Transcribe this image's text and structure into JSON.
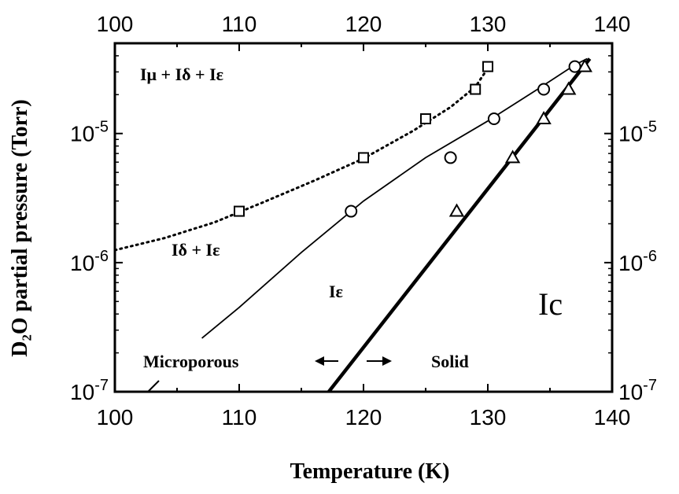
{
  "chart_data": {
    "type": "line",
    "xlabel": "Temperature (K)",
    "ylabel": "D₂O partial pressure (Torr)",
    "xlim": [
      100,
      140
    ],
    "ylim": [
      1e-07,
      5e-05
    ],
    "y_scale": "log",
    "x_ticks": [
      "100",
      "110",
      "120",
      "130",
      "140"
    ],
    "top_x_ticks": [
      "100",
      "110",
      "120",
      "130",
      "140"
    ],
    "y_tick_mantissa": "10",
    "y_tick_exponents": [
      "-7",
      "-6",
      "-5"
    ],
    "series": [
      {
        "marker": "square",
        "line": "dotted",
        "points": [
          [
            110,
            2.5e-06
          ],
          [
            120,
            6.5e-06
          ],
          [
            125,
            1.3e-05
          ],
          [
            129,
            2.2e-05
          ],
          [
            130,
            3.3e-05
          ]
        ]
      },
      {
        "marker": "circle",
        "line": "thin-solid",
        "points": [
          [
            119,
            2.5e-06
          ],
          [
            127,
            6.5e-06
          ],
          [
            130.5,
            1.3e-05
          ],
          [
            134.5,
            2.2e-05
          ],
          [
            137,
            3.3e-05
          ]
        ]
      },
      {
        "marker": "triangle",
        "line": "thick-solid",
        "points": [
          [
            127.5,
            2.5e-06
          ],
          [
            132,
            6.5e-06
          ],
          [
            134.5,
            1.3e-05
          ],
          [
            136.5,
            2.2e-05
          ],
          [
            137.8,
            3.3e-05
          ]
        ]
      }
    ],
    "fit_lines": [
      {
        "name": "squares_fit",
        "style": "dotted",
        "points": [
          [
            100,
            1.25e-06
          ],
          [
            104,
            1.55e-06
          ],
          [
            108,
            2.05e-06
          ],
          [
            112,
            2.95e-06
          ],
          [
            116,
            4.3e-06
          ],
          [
            120,
            6.4e-06
          ],
          [
            124,
            1.05e-05
          ],
          [
            127,
            1.6e-05
          ],
          [
            129,
            2.3e-05
          ],
          [
            130,
            3.2e-05
          ]
        ]
      },
      {
        "name": "circles_fit",
        "style": "thin-solid",
        "points": [
          [
            107,
            2.6e-07
          ],
          [
            110,
            4.5e-07
          ],
          [
            115,
            1.2e-06
          ],
          [
            120,
            3e-06
          ],
          [
            125,
            6.5e-06
          ],
          [
            130,
            1.25e-05
          ],
          [
            134,
            2.2e-05
          ],
          [
            137,
            3.4e-05
          ],
          [
            138,
            3.8e-05
          ]
        ]
      },
      {
        "name": "triangles_fit",
        "style": "thick-solid",
        "points": [
          [
            117.2,
            1e-07
          ],
          [
            138.2,
            3.8e-05
          ]
        ]
      }
    ],
    "annotations": {
      "region_top_left": "Iμ + Iδ + Iε",
      "region_mid_left": "Iδ + Iε",
      "region_center": "Iε",
      "region_right": "Ic",
      "microporous": "Microporous",
      "solid": "Solid"
    }
  }
}
